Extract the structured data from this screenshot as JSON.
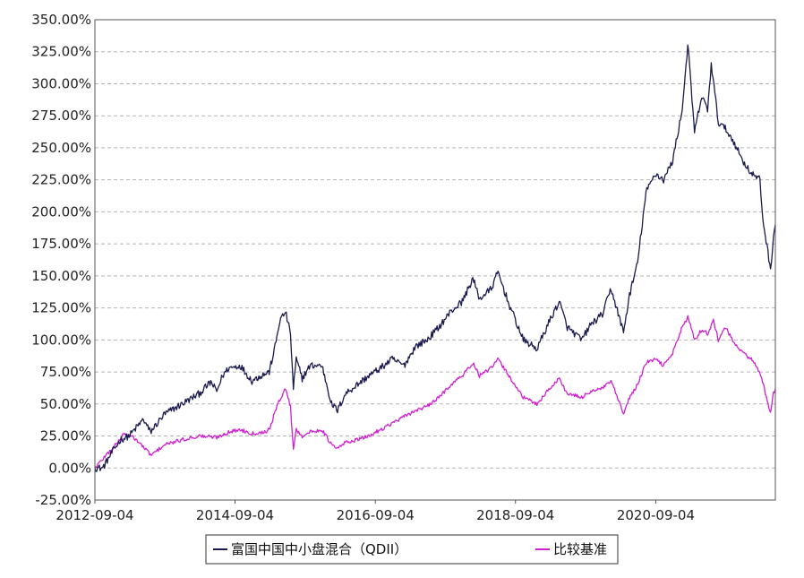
{
  "chart_data": {
    "type": "line",
    "title": "",
    "xlabel": "",
    "ylabel": "",
    "ylim": [
      -25,
      350
    ],
    "yticks": [
      -25,
      0,
      25,
      50,
      75,
      100,
      125,
      150,
      175,
      200,
      225,
      250,
      275,
      300,
      325,
      350
    ],
    "ytick_labels": [
      "-25.00%",
      "0.00%",
      "25.00%",
      "50.00%",
      "75.00%",
      "100.00%",
      "125.00%",
      "150.00%",
      "175.00%",
      "200.00%",
      "225.00%",
      "250.00%",
      "275.00%",
      "300.00%",
      "325.00%",
      "350.00%"
    ],
    "xlim": [
      "2012-09-04",
      "2022-05-20"
    ],
    "xticks": [
      "2012-09-04",
      "2014-09-04",
      "2016-09-04",
      "2018-09-04",
      "2020-09-04"
    ],
    "grid": true,
    "legend_position": "bottom",
    "series": [
      {
        "name": "富国中国中小盘混合（QDII）",
        "color": "#1a1a4e",
        "points": [
          [
            "2012-09-04",
            0
          ],
          [
            "2012-10-15",
            0
          ],
          [
            "2012-12-01",
            12
          ],
          [
            "2013-01-15",
            22
          ],
          [
            "2013-03-01",
            25
          ],
          [
            "2013-05-15",
            38
          ],
          [
            "2013-06-20",
            28
          ],
          [
            "2013-09-01",
            42
          ],
          [
            "2013-12-01",
            50
          ],
          [
            "2014-03-01",
            58
          ],
          [
            "2014-05-01",
            67
          ],
          [
            "2014-06-01",
            60
          ],
          [
            "2014-07-01",
            72
          ],
          [
            "2014-08-01",
            78
          ],
          [
            "2014-10-01",
            80
          ],
          [
            "2014-12-01",
            68
          ],
          [
            "2015-01-15",
            72
          ],
          [
            "2015-03-01",
            75
          ],
          [
            "2015-04-01",
            95
          ],
          [
            "2015-04-25",
            115
          ],
          [
            "2015-05-25",
            122
          ],
          [
            "2015-06-20",
            105
          ],
          [
            "2015-07-05",
            62
          ],
          [
            "2015-07-20",
            85
          ],
          [
            "2015-08-20",
            70
          ],
          [
            "2015-10-01",
            80
          ],
          [
            "2015-12-01",
            80
          ],
          [
            "2016-01-20",
            50
          ],
          [
            "2016-02-20",
            45
          ],
          [
            "2016-04-01",
            58
          ],
          [
            "2016-06-01",
            65
          ],
          [
            "2016-08-01",
            72
          ],
          [
            "2016-10-01",
            78
          ],
          [
            "2016-12-01",
            85
          ],
          [
            "2017-02-01",
            80
          ],
          [
            "2017-04-01",
            95
          ],
          [
            "2017-06-01",
            100
          ],
          [
            "2017-08-01",
            110
          ],
          [
            "2017-10-01",
            122
          ],
          [
            "2017-12-01",
            130
          ],
          [
            "2018-01-25",
            148
          ],
          [
            "2018-03-01",
            132
          ],
          [
            "2018-05-01",
            140
          ],
          [
            "2018-06-05",
            153
          ],
          [
            "2018-08-01",
            128
          ],
          [
            "2018-10-15",
            100
          ],
          [
            "2018-12-25",
            93
          ],
          [
            "2019-03-01",
            115
          ],
          [
            "2019-04-20",
            130
          ],
          [
            "2019-06-01",
            110
          ],
          [
            "2019-08-15",
            100
          ],
          [
            "2019-10-01",
            112
          ],
          [
            "2019-12-01",
            120
          ],
          [
            "2020-01-15",
            140
          ],
          [
            "2020-03-20",
            106
          ],
          [
            "2020-04-20",
            135
          ],
          [
            "2020-06-01",
            160
          ],
          [
            "2020-07-15",
            215
          ],
          [
            "2020-09-01",
            230
          ],
          [
            "2020-10-15",
            225
          ],
          [
            "2020-12-01",
            240
          ],
          [
            "2021-01-20",
            280
          ],
          [
            "2021-02-18",
            331
          ],
          [
            "2021-03-25",
            262
          ],
          [
            "2021-05-01",
            290
          ],
          [
            "2021-06-01",
            280
          ],
          [
            "2021-06-20",
            315
          ],
          [
            "2021-07-27",
            270
          ],
          [
            "2021-09-01",
            265
          ],
          [
            "2021-10-15",
            255
          ],
          [
            "2021-12-01",
            240
          ],
          [
            "2022-01-15",
            230
          ],
          [
            "2022-03-01",
            225
          ],
          [
            "2022-03-15",
            195
          ],
          [
            "2022-04-25",
            155
          ],
          [
            "2022-05-10",
            180
          ],
          [
            "2022-05-20",
            190
          ]
        ]
      },
      {
        "name": "比较基准",
        "color": "#d020d0",
        "points": [
          [
            "2012-09-04",
            0
          ],
          [
            "2012-11-01",
            10
          ],
          [
            "2013-01-01",
            20
          ],
          [
            "2013-02-01",
            27
          ],
          [
            "2013-04-01",
            23
          ],
          [
            "2013-06-25",
            10
          ],
          [
            "2013-09-01",
            18
          ],
          [
            "2013-12-01",
            22
          ],
          [
            "2014-03-01",
            25
          ],
          [
            "2014-06-01",
            24
          ],
          [
            "2014-08-01",
            28
          ],
          [
            "2014-10-01",
            30
          ],
          [
            "2014-12-01",
            27
          ],
          [
            "2015-02-01",
            28
          ],
          [
            "2015-03-01",
            30
          ],
          [
            "2015-04-20",
            52
          ],
          [
            "2015-05-25",
            62
          ],
          [
            "2015-06-20",
            48
          ],
          [
            "2015-07-05",
            15
          ],
          [
            "2015-07-20",
            30
          ],
          [
            "2015-08-20",
            25
          ],
          [
            "2015-10-01",
            28
          ],
          [
            "2015-12-01",
            30
          ],
          [
            "2016-01-20",
            18
          ],
          [
            "2016-02-20",
            15
          ],
          [
            "2016-04-01",
            20
          ],
          [
            "2016-06-01",
            22
          ],
          [
            "2016-08-01",
            25
          ],
          [
            "2016-10-01",
            30
          ],
          [
            "2016-12-01",
            35
          ],
          [
            "2017-02-01",
            40
          ],
          [
            "2017-04-01",
            45
          ],
          [
            "2017-06-01",
            48
          ],
          [
            "2017-08-01",
            55
          ],
          [
            "2017-10-01",
            65
          ],
          [
            "2017-12-01",
            72
          ],
          [
            "2018-01-25",
            82
          ],
          [
            "2018-03-01",
            72
          ],
          [
            "2018-05-01",
            78
          ],
          [
            "2018-06-05",
            85
          ],
          [
            "2018-08-01",
            72
          ],
          [
            "2018-10-15",
            55
          ],
          [
            "2018-12-25",
            50
          ],
          [
            "2019-03-01",
            62
          ],
          [
            "2019-04-20",
            70
          ],
          [
            "2019-06-01",
            58
          ],
          [
            "2019-08-15",
            55
          ],
          [
            "2019-10-01",
            60
          ],
          [
            "2019-12-01",
            62
          ],
          [
            "2020-01-15",
            68
          ],
          [
            "2020-03-20",
            42
          ],
          [
            "2020-04-20",
            55
          ],
          [
            "2020-06-01",
            65
          ],
          [
            "2020-07-15",
            82
          ],
          [
            "2020-09-01",
            85
          ],
          [
            "2020-10-15",
            80
          ],
          [
            "2020-12-01",
            90
          ],
          [
            "2021-01-20",
            110
          ],
          [
            "2021-02-18",
            118
          ],
          [
            "2021-03-25",
            100
          ],
          [
            "2021-05-01",
            108
          ],
          [
            "2021-06-01",
            105
          ],
          [
            "2021-07-01",
            115
          ],
          [
            "2021-07-27",
            100
          ],
          [
            "2021-09-01",
            110
          ],
          [
            "2021-10-15",
            98
          ],
          [
            "2021-12-01",
            90
          ],
          [
            "2022-01-15",
            85
          ],
          [
            "2022-03-01",
            75
          ],
          [
            "2022-04-25",
            42
          ],
          [
            "2022-05-10",
            58
          ],
          [
            "2022-05-20",
            62
          ]
        ]
      }
    ]
  }
}
